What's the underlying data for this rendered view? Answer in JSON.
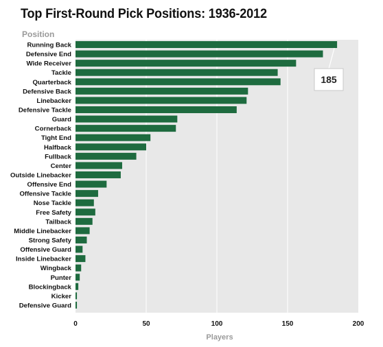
{
  "title": "Top First-Round Pick Positions: 1936-2012",
  "category_header": "Position",
  "xlabel": "Players",
  "callout_label": "185",
  "colors": {
    "bar": "#1e6b3f",
    "plot_background": "#e8e8e8",
    "grid": "#ffffff",
    "title": "#111111",
    "muted_label": "#9a9a9a"
  },
  "chart_data": {
    "type": "bar",
    "orientation": "horizontal",
    "title": "Top First-Round Pick Positions: 1936-2012",
    "xlabel": "Players",
    "ylabel": "Position",
    "xlim": [
      0,
      200
    ],
    "xticks": [
      0,
      50,
      100,
      150,
      200
    ],
    "grid": true,
    "categories": [
      "Running Back",
      "Defensive End",
      "Wide Receiver",
      "Tackle",
      "Quarterback",
      "Defensive Back",
      "Linebacker",
      "Defensive Tackle",
      "Guard",
      "Cornerback",
      "Tight End",
      "Halfback",
      "Fullback",
      "Center",
      "Outside Linebacker",
      "Offensive End",
      "Offensive Tackle",
      "Nose Tackle",
      "Free Safety",
      "Tailback",
      "Middle Linebacker",
      "Strong Safety",
      "Offensive Guard",
      "Inside Linebacker",
      "Wingback",
      "Punter",
      "Blockingback",
      "Kicker",
      "Defensive Guard"
    ],
    "values": [
      185,
      175,
      156,
      143,
      145,
      122,
      121,
      114,
      72,
      71,
      53,
      50,
      43,
      33,
      32,
      22,
      16,
      13,
      14,
      12,
      10,
      8,
      5,
      7,
      4,
      3,
      2,
      1,
      1
    ],
    "annotations": [
      {
        "category": "Running Back",
        "text": "185"
      }
    ]
  }
}
